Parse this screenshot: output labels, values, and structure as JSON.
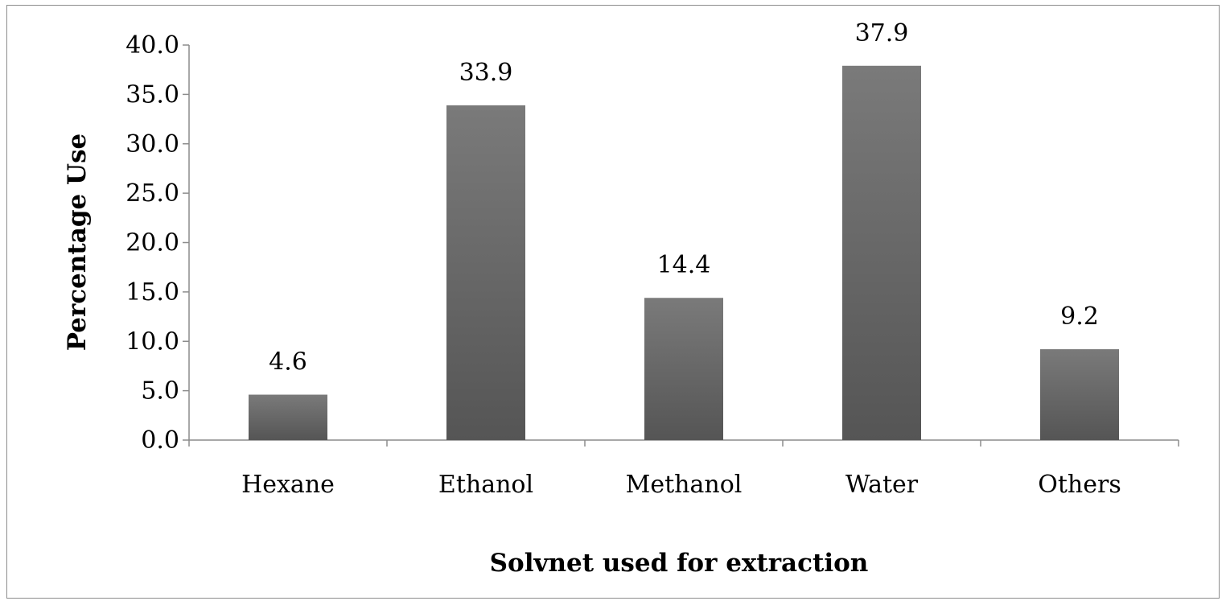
{
  "chart_data": {
    "type": "bar",
    "title": "",
    "xlabel": "Solvnet  used for extraction",
    "ylabel": "Percentage Use",
    "categories": [
      "Hexane",
      "Ethanol",
      "Methanol",
      "Water",
      "Others"
    ],
    "values": [
      4.6,
      33.9,
      14.4,
      37.9,
      9.2
    ],
    "data_labels": [
      "4.6",
      "33.9",
      "14.4",
      "37.9",
      "9.2"
    ],
    "yticks": [
      "0.0",
      "5.0",
      "10.0",
      "15.0",
      "20.0",
      "25.0",
      "30.0",
      "35.0",
      "40.0"
    ],
    "ylim": [
      0,
      40
    ],
    "grid": false,
    "legend": "none",
    "colors": {
      "bar_dark": "#555555",
      "bar_light": "#7a7a7a",
      "axis": "#8c8c8c",
      "frame": "#8c8c8c"
    }
  }
}
